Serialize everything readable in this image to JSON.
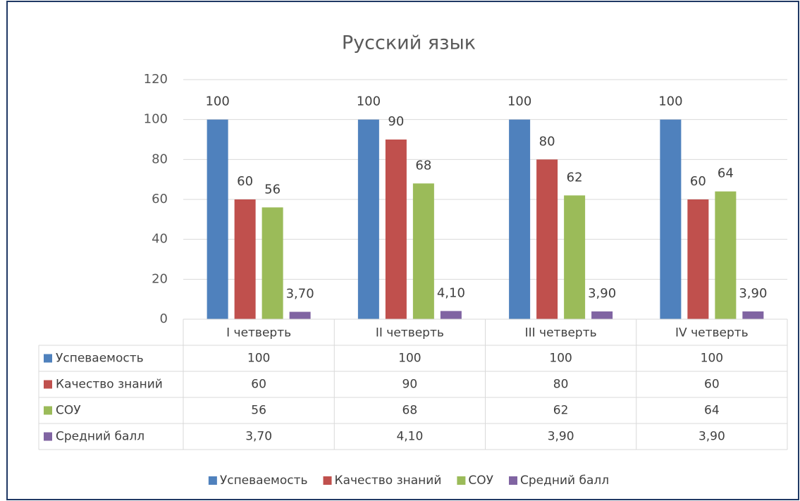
{
  "chart_data": {
    "type": "bar",
    "title": "Русский язык",
    "categories": [
      "I четверть",
      "II четверть",
      "III четверть",
      "IV четверть"
    ],
    "series": [
      {
        "name": "Успеваемость",
        "color": "#4f81bd",
        "values": [
          100,
          100,
          100,
          100
        ]
      },
      {
        "name": "Качество знаний",
        "color": "#c0504d",
        "values": [
          60,
          90,
          80,
          60
        ]
      },
      {
        "name": "СОУ",
        "color": "#9bbb59",
        "values": [
          56,
          68,
          62,
          64
        ]
      },
      {
        "name": "Средний балл",
        "color": "#8064a2",
        "values": [
          3.7,
          4.1,
          3.9,
          3.9
        ],
        "value_labels": [
          "3,70",
          "4,10",
          "3,90",
          "3,90"
        ]
      }
    ],
    "ylim": [
      0,
      120
    ],
    "yticks": [
      0,
      20,
      40,
      60,
      80,
      100,
      120
    ],
    "grid": true,
    "legend": "bottom",
    "data_table": true
  }
}
